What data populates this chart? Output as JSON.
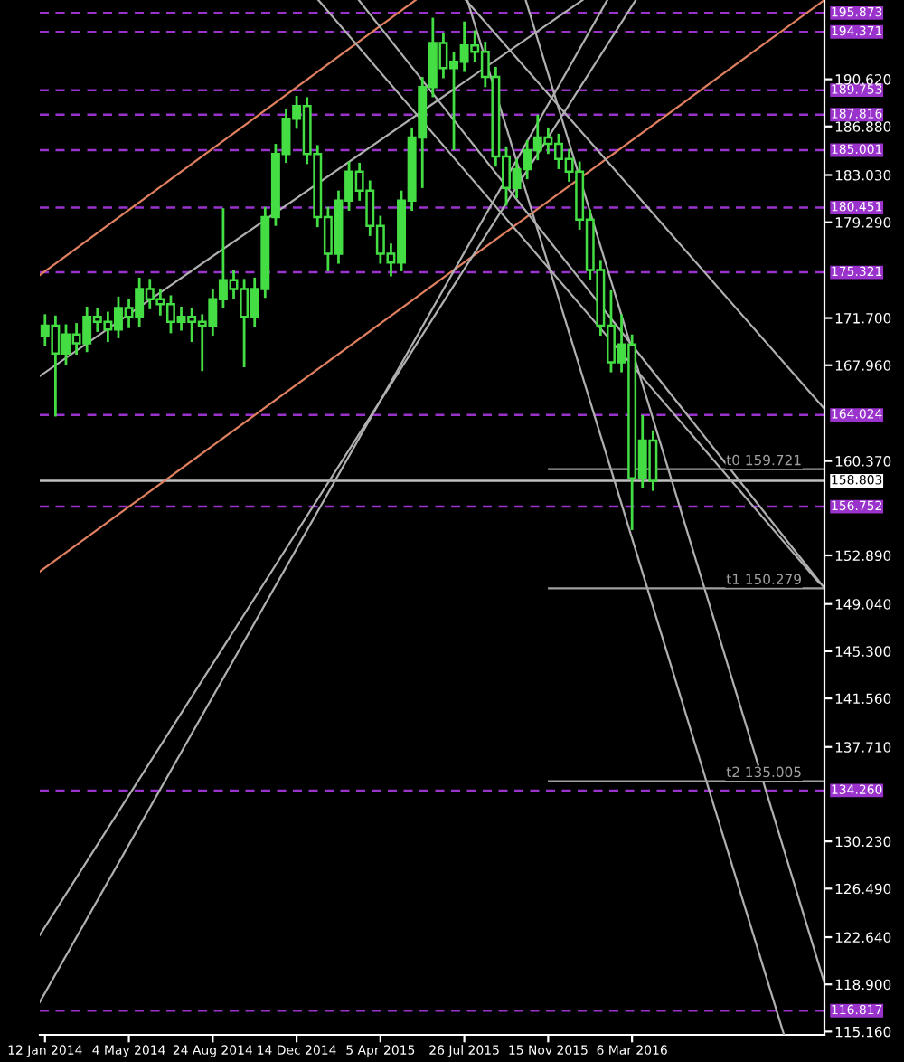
{
  "chart_data": {
    "type": "candlestick",
    "x": [
      "2014-01-12",
      "2014-01-26",
      "2014-02-09",
      "2014-02-23",
      "2014-03-09",
      "2014-03-23",
      "2014-04-06",
      "2014-04-20",
      "2014-05-04",
      "2014-05-18",
      "2014-06-01",
      "2014-06-15",
      "2014-06-29",
      "2014-07-13",
      "2014-07-27",
      "2014-08-10",
      "2014-08-24",
      "2014-09-07",
      "2014-09-21",
      "2014-10-05",
      "2014-10-19",
      "2014-11-02",
      "2014-11-16",
      "2014-11-30",
      "2014-12-14",
      "2014-12-28",
      "2015-01-11",
      "2015-01-25",
      "2015-02-08",
      "2015-02-22",
      "2015-03-08",
      "2015-03-22",
      "2015-04-05",
      "2015-04-19",
      "2015-05-03",
      "2015-05-17",
      "2015-05-31",
      "2015-06-14",
      "2015-06-28",
      "2015-07-12",
      "2015-07-26",
      "2015-08-09",
      "2015-08-23",
      "2015-09-06",
      "2015-09-20",
      "2015-10-04",
      "2015-10-18",
      "2015-11-01",
      "2015-11-15",
      "2015-11-29",
      "2015-12-13",
      "2015-12-27",
      "2016-01-10",
      "2016-01-24",
      "2016-02-07",
      "2016-02-21",
      "2016-03-06",
      "2016-03-20",
      "2016-04-03"
    ],
    "series": [
      {
        "color": "#44dd44",
        "ohlc": [
          [
            170.3,
            172.0,
            169.5,
            171.1
          ],
          [
            171.1,
            171.9,
            163.9,
            168.9
          ],
          [
            168.9,
            171.2,
            168.0,
            170.4
          ],
          [
            170.4,
            171.3,
            168.8,
            169.7
          ],
          [
            169.7,
            172.6,
            169.0,
            171.8
          ],
          [
            171.8,
            172.5,
            170.6,
            171.4
          ],
          [
            171.4,
            172.2,
            169.8,
            170.8
          ],
          [
            170.8,
            173.4,
            170.1,
            172.5
          ],
          [
            172.5,
            173.2,
            170.9,
            171.8
          ],
          [
            171.8,
            174.9,
            171.0,
            174.0
          ],
          [
            174.0,
            174.8,
            172.4,
            173.2
          ],
          [
            173.2,
            174.0,
            171.9,
            172.8
          ],
          [
            172.8,
            173.5,
            170.5,
            171.4
          ],
          [
            171.4,
            172.6,
            170.7,
            171.8
          ],
          [
            171.8,
            172.5,
            169.8,
            171.4
          ],
          [
            171.4,
            172.0,
            167.5,
            171.1
          ],
          [
            171.1,
            174.0,
            170.3,
            173.2
          ],
          [
            173.2,
            180.4,
            172.5,
            174.7
          ],
          [
            174.7,
            175.5,
            173.2,
            174.0
          ],
          [
            174.0,
            174.8,
            167.8,
            171.8
          ],
          [
            171.8,
            174.9,
            171.0,
            174.0
          ],
          [
            174.0,
            180.5,
            173.3,
            179.7
          ],
          [
            179.7,
            185.5,
            179.0,
            184.7
          ],
          [
            184.7,
            188.3,
            184.0,
            187.5
          ],
          [
            187.5,
            189.3,
            186.7,
            188.5
          ],
          [
            188.5,
            189.2,
            183.9,
            184.7
          ],
          [
            184.7,
            185.4,
            178.9,
            179.7
          ],
          [
            179.7,
            180.5,
            175.4,
            176.8
          ],
          [
            176.8,
            181.8,
            176.0,
            181.0
          ],
          [
            181.0,
            184.1,
            180.2,
            183.3
          ],
          [
            183.3,
            184.0,
            181.0,
            181.8
          ],
          [
            181.8,
            182.6,
            178.2,
            179.0
          ],
          [
            179.0,
            179.8,
            176.0,
            176.8
          ],
          [
            176.8,
            177.6,
            175.0,
            176.1
          ],
          [
            176.1,
            181.8,
            175.4,
            181.0
          ],
          [
            181.0,
            186.8,
            180.2,
            186.0
          ],
          [
            186.0,
            190.8,
            182.0,
            190.0
          ],
          [
            190.0,
            195.5,
            189.2,
            193.5
          ],
          [
            193.5,
            194.3,
            190.7,
            191.5
          ],
          [
            191.5,
            192.8,
            185.0,
            192.0
          ],
          [
            192.0,
            195.2,
            191.2,
            193.3
          ],
          [
            193.3,
            194.5,
            192.0,
            192.8
          ],
          [
            192.8,
            193.6,
            190.0,
            190.8
          ],
          [
            190.8,
            191.6,
            183.7,
            184.5
          ],
          [
            184.5,
            185.3,
            180.6,
            182.0
          ],
          [
            182.0,
            184.3,
            181.2,
            183.5
          ],
          [
            183.5,
            185.8,
            182.7,
            185.0
          ],
          [
            185.0,
            187.8,
            184.2,
            186.0
          ],
          [
            186.0,
            186.8,
            184.7,
            185.5
          ],
          [
            185.5,
            186.3,
            183.5,
            184.3
          ],
          [
            184.3,
            185.1,
            182.5,
            183.3
          ],
          [
            183.3,
            184.1,
            178.7,
            179.5
          ],
          [
            179.5,
            180.3,
            174.7,
            175.5
          ],
          [
            175.5,
            176.3,
            170.3,
            171.1
          ],
          [
            171.1,
            173.9,
            167.4,
            168.2
          ],
          [
            168.2,
            172.0,
            167.4,
            169.6
          ],
          [
            169.6,
            170.4,
            154.9,
            159.0
          ],
          [
            159.0,
            164.0,
            158.2,
            162.0
          ],
          [
            162.0,
            162.8,
            158.0,
            158.8
          ]
        ]
      },
      {
        "type": "line",
        "color": "#e08060",
        "x": [
          "2014-01-05",
          "2015-05-22"
        ],
        "values": [
          175.1,
          196.9
        ]
      },
      {
        "type": "line",
        "color": "#e08060",
        "x": [
          "2014-01-05",
          "2016-11-18"
        ],
        "values": [
          151.6,
          196.9
        ]
      },
      {
        "type": "line",
        "color": "#b0b0b0",
        "x": [
          "2014-01-05",
          "2015-12-31"
        ],
        "values": [
          167.1,
          196.9
        ]
      },
      {
        "type": "line",
        "color": "#b0b0b0",
        "x": [
          "2014-01-05",
          "2016-02-02"
        ],
        "values": [
          117.5,
          196.9
        ]
      },
      {
        "type": "line",
        "color": "#b0b0b0",
        "x": [
          "2015-03-07",
          "2016-11-18"
        ],
        "values": [
          196.9,
          150.3
        ]
      },
      {
        "type": "line",
        "color": "#b0b0b0",
        "x": [
          "2015-07-28",
          "2016-11-18"
        ],
        "values": [
          196.9,
          164.5
        ]
      },
      {
        "type": "line",
        "color": "#b0b0b0",
        "x": [
          "2015-07-30",
          "2016-09-25"
        ],
        "values": [
          196.9,
          114.9
        ]
      },
      {
        "type": "line",
        "color": "#b0b0b0",
        "x": [
          "2015-10-16",
          "2016-11-18"
        ],
        "values": [
          196.9,
          119.0
        ]
      },
      {
        "type": "line",
        "color": "#b0b0b0",
        "x": [
          "2015-01-12",
          "2016-11-11"
        ],
        "values": [
          196.9,
          150.7
        ]
      },
      {
        "type": "line",
        "color": "#b0b0b0",
        "x": [
          "2014-01-05",
          "2016-03-11"
        ],
        "values": [
          122.8,
          196.9
        ]
      },
      {
        "type": "line",
        "color": "#a0a0a0",
        "name": "t0 159.721",
        "x": [
          "2015-11-16",
          "2016-11-18"
        ],
        "values": [
          159.721,
          159.721
        ]
      },
      {
        "type": "line",
        "color": "#a0a0a0",
        "name": "t1 150.279",
        "x": [
          "2015-11-16",
          "2016-11-18"
        ],
        "values": [
          150.279,
          150.279
        ]
      },
      {
        "type": "line",
        "color": "#a0a0a0",
        "name": "t2 135.005",
        "x": [
          "2015-11-16",
          "2016-11-18"
        ],
        "values": [
          135.005,
          135.005
        ]
      }
    ],
    "xlim": [
      "2014-01-05",
      "2016-11-18"
    ],
    "xticks": [
      {
        "value": "2014-01-12",
        "label": "12 Jan 2014"
      },
      {
        "value": "2014-05-04",
        "label": "4 May 2014"
      },
      {
        "value": "2014-08-24",
        "label": "24 Aug 2014"
      },
      {
        "value": "2014-12-14",
        "label": "14 Dec 2014"
      },
      {
        "value": "2015-04-05",
        "label": "5 Apr 2015"
      },
      {
        "value": "2015-07-26",
        "label": "26 Jul 2015"
      },
      {
        "value": "2015-11-15",
        "label": "15 Nov 2015"
      },
      {
        "value": "2016-03-06",
        "label": "6 Mar 2016"
      }
    ],
    "ylim": [
      114.9,
      196.9
    ],
    "yticks": [
      {
        "value": 115.16,
        "label": "115.160"
      },
      {
        "value": 118.9,
        "label": "118.900"
      },
      {
        "value": 122.64,
        "label": "122.640"
      },
      {
        "value": 126.49,
        "label": "126.490"
      },
      {
        "value": 130.23,
        "label": "130.230"
      },
      {
        "value": 137.71,
        "label": "137.710"
      },
      {
        "value": 141.56,
        "label": "141.560"
      },
      {
        "value": 145.3,
        "label": "145.300"
      },
      {
        "value": 149.04,
        "label": "149.040"
      },
      {
        "value": 152.89,
        "label": "152.890"
      },
      {
        "value": 160.37,
        "label": "160.370"
      },
      {
        "value": 167.96,
        "label": "167.960"
      },
      {
        "value": 171.7,
        "label": "171.700"
      },
      {
        "value": 179.29,
        "label": "179.290"
      },
      {
        "value": 183.03,
        "label": "183.030"
      },
      {
        "value": 186.88,
        "label": "186.880"
      },
      {
        "value": 190.62,
        "label": "190.620"
      }
    ],
    "ref_lines": [
      {
        "axis": "y",
        "value": 195.873,
        "label": "195.873",
        "color": "#9933cc",
        "line_style": "dashed"
      },
      {
        "axis": "y",
        "value": 194.371,
        "label": "194.371",
        "color": "#9933cc",
        "line_style": "dashed"
      },
      {
        "axis": "y",
        "value": 189.753,
        "label": "189.753",
        "color": "#9933cc",
        "line_style": "dashed"
      },
      {
        "axis": "y",
        "value": 187.816,
        "label": "187.816",
        "color": "#9933cc",
        "line_style": "dashed"
      },
      {
        "axis": "y",
        "value": 185.001,
        "label": "185.001",
        "color": "#9933cc",
        "line_style": "dashed"
      },
      {
        "axis": "y",
        "value": 180.451,
        "label": "180.451",
        "color": "#9933cc",
        "line_style": "dashed"
      },
      {
        "axis": "y",
        "value": 175.321,
        "label": "175.321",
        "color": "#9933cc",
        "line_style": "dashed"
      },
      {
        "axis": "y",
        "value": 164.024,
        "label": "164.024",
        "color": "#9933cc",
        "line_style": "dashed"
      },
      {
        "axis": "y",
        "value": 156.752,
        "label": "156.752",
        "color": "#9933cc",
        "line_style": "dashed"
      },
      {
        "axis": "y",
        "value": 134.26,
        "label": "134.260",
        "color": "#9933cc",
        "line_style": "dashed"
      },
      {
        "axis": "y",
        "value": 116.817,
        "label": "116.817",
        "color": "#9933cc",
        "line_style": "dashed"
      },
      {
        "axis": "y",
        "value": 158.803,
        "label": "158.803",
        "color": "#c0c0c0",
        "line_style": "solid"
      }
    ],
    "grid": false,
    "legend": false
  }
}
